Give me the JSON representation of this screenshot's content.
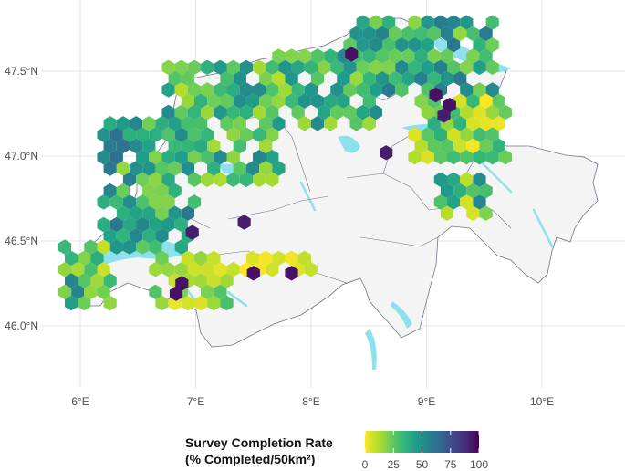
{
  "map": {
    "x_ticks": [
      {
        "value": 6,
        "label": "6°E"
      },
      {
        "value": 7,
        "label": "7°E"
      },
      {
        "value": 8,
        "label": "8°E"
      },
      {
        "value": 9,
        "label": "9°E"
      },
      {
        "value": 10,
        "label": "10°E"
      }
    ],
    "y_ticks": [
      {
        "value": 47.5,
        "label": "47.5°N"
      },
      {
        "value": 47.0,
        "label": "47.0°N"
      },
      {
        "value": 46.5,
        "label": "46.5°N"
      },
      {
        "value": 46.0,
        "label": "46.0°N"
      }
    ],
    "xlim": [
      5.75,
      10.75
    ],
    "ylim": [
      45.75,
      47.88
    ],
    "grid": true,
    "colors": {
      "land": "#f4f4f4",
      "border": "#6e7587",
      "water": "#8de1ec",
      "grid": "#e3e3e3"
    },
    "legend": {
      "title_line1": "Survey Completion Rate",
      "title_line2": "(% Completed/50km²)",
      "ticks": [
        "0",
        "25",
        "50",
        "75",
        "100"
      ],
      "range": [
        0,
        100
      ],
      "palette": [
        "#fde725",
        "#b5de2b",
        "#6ece58",
        "#35b779",
        "#1f9e89",
        "#26828e",
        "#31688e",
        "#3e4989",
        "#482878",
        "#440154"
      ],
      "placement": "bottom"
    },
    "hex_clusters": [
      {
        "lon": [
          5.95,
          6.3
        ],
        "lat": [
          46.1,
          46.45
        ],
        "mean": 30,
        "spread": 25
      },
      {
        "lon": [
          6.3,
          7.0
        ],
        "lat": [
          46.45,
          47.15
        ],
        "mean": 40,
        "spread": 25
      },
      {
        "lon": [
          6.85,
          7.75
        ],
        "lat": [
          46.8,
          47.5
        ],
        "mean": 32,
        "spread": 22
      },
      {
        "lon": [
          7.75,
          8.6
        ],
        "lat": [
          47.15,
          47.55
        ],
        "mean": 36,
        "spread": 22
      },
      {
        "lon": [
          8.4,
          9.6
        ],
        "lat": [
          47.35,
          47.75
        ],
        "mean": 38,
        "spread": 22
      },
      {
        "lon": [
          8.9,
          9.7
        ],
        "lat": [
          46.95,
          47.3
        ],
        "mean": 20,
        "spread": 20
      },
      {
        "lon": [
          9.15,
          9.55
        ],
        "lat": [
          46.6,
          46.85
        ],
        "mean": 30,
        "spread": 25
      },
      {
        "lon": [
          6.75,
          7.3
        ],
        "lat": [
          46.1,
          46.35
        ],
        "mean": 15,
        "spread": 15
      },
      {
        "lon": [
          7.4,
          8.1
        ],
        "lat": [
          46.28,
          46.34
        ],
        "mean": 5,
        "spread": 5
      }
    ],
    "purple_spots": [
      {
        "lon": 8.35,
        "lat": 47.6,
        "value": 95
      },
      {
        "lon": 6.97,
        "lat": 46.55,
        "value": 92
      },
      {
        "lon": 7.42,
        "lat": 46.61,
        "value": 92
      },
      {
        "lon": 6.88,
        "lat": 46.25,
        "value": 95
      },
      {
        "lon": 6.83,
        "lat": 46.19,
        "value": 95
      },
      {
        "lon": 7.5,
        "lat": 46.31,
        "value": 95
      },
      {
        "lon": 7.83,
        "lat": 46.31,
        "value": 95
      },
      {
        "lon": 8.65,
        "lat": 47.02,
        "value": 92
      },
      {
        "lon": 9.08,
        "lat": 47.36,
        "value": 95
      },
      {
        "lon": 9.2,
        "lat": 47.3,
        "value": 95
      },
      {
        "lon": 9.15,
        "lat": 47.24,
        "value": 92
      }
    ]
  }
}
